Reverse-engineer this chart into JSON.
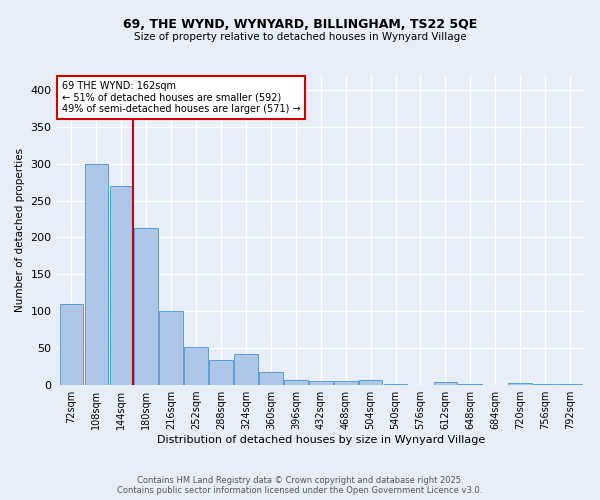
{
  "title1": "69, THE WYND, WYNYARD, BILLINGHAM, TS22 5QE",
  "title2": "Size of property relative to detached houses in Wynyard Village",
  "xlabel": "Distribution of detached houses by size in Wynyard Village",
  "ylabel": "Number of detached properties",
  "bar_values": [
    110,
    300,
    270,
    213,
    100,
    52,
    34,
    42,
    18,
    7,
    5,
    5,
    7,
    2,
    0,
    4,
    1,
    0,
    3,
    1,
    2
  ],
  "bin_labels": [
    "72sqm",
    "108sqm",
    "144sqm",
    "180sqm",
    "216sqm",
    "252sqm",
    "288sqm",
    "324sqm",
    "360sqm",
    "396sqm",
    "432sqm",
    "468sqm",
    "504sqm",
    "540sqm",
    "576sqm",
    "612sqm",
    "648sqm",
    "684sqm",
    "720sqm",
    "756sqm",
    "792sqm"
  ],
  "bar_color": "#aec6e8",
  "bar_edge_color": "#5a9fd4",
  "background_color": "#e8eef8",
  "grid_color": "#ffffff",
  "annotation_text_line1": "69 THE WYND: 162sqm",
  "annotation_text_line2": "← 51% of detached houses are smaller (592)",
  "annotation_text_line3": "49% of semi-detached houses are larger (571) →",
  "annotation_box_color": "#ffffff",
  "annotation_box_edge": "#cc0000",
  "vline_color": "#cc0000",
  "footer_line1": "Contains HM Land Registry data © Crown copyright and database right 2025.",
  "footer_line2": "Contains public sector information licensed under the Open Government Licence v3.0.",
  "ylim": [
    0,
    420
  ],
  "yticks": [
    0,
    50,
    100,
    150,
    200,
    250,
    300,
    350,
    400
  ]
}
